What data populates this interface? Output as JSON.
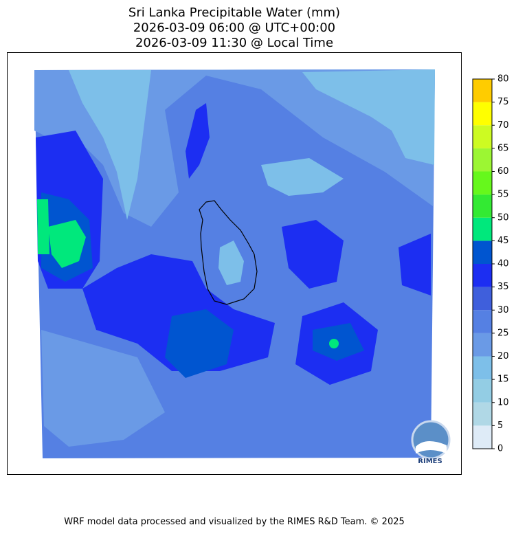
{
  "title": [
    "Sri Lanka Precipitable Water (mm)",
    "2026-03-09 06:00 @ UTC+00:00",
    "2026-03-09 11:30 @ Local Time"
  ],
  "colorbar": {
    "levels": [
      0,
      5,
      10,
      15,
      20,
      25,
      30,
      35,
      40,
      45,
      50,
      55,
      60,
      65,
      70,
      75,
      80
    ],
    "colors": [
      "#deebf7",
      "#b0d8e6",
      "#93cde4",
      "#7dbfe9",
      "#6a9ae6",
      "#5580e3",
      "#3f5fdc",
      "#1c2ef2",
      "#0055d0",
      "#00e87c",
      "#33ea33",
      "#66f81c",
      "#9cf633",
      "#cdfb22",
      "#ffff00",
      "#ffcc00"
    ]
  },
  "logo": "RIMES",
  "footer": "WRF model data processed and visualized by the RIMES R&D Team. © 2025"
}
